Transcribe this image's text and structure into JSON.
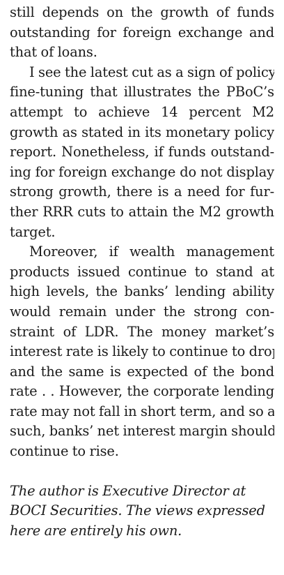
{
  "article": {
    "paragraphs": [
      {
        "lines": [
          "still depends on the growth of funds",
          "outstanding for foreign exchange and",
          "that of loans."
        ]
      },
      {
        "lines": [
          "I see the latest cut as a sign of policy",
          "fine-tuning that illustrates the PBoC’s",
          "attempt to achieve 14 percent M2",
          "growth as stated in its monetary policy",
          "report. Nonetheless, if funds outstand-",
          "ing for foreign exchange do not display",
          "strong growth, there is a need for fur-",
          "ther RRR cuts to attain the M2 growth",
          "target."
        ]
      },
      {
        "lines": [
          "Moreover, if wealth management",
          "products issued continue to stand at",
          "high levels, the banks’ lending ability",
          "would remain under the strong con-",
          "straint of LDR. The money market’s",
          "interest rate is likely to continue to drop,",
          "and the same is expected of the bond",
          "rate . . However, the corporate lending",
          "rate may not fall in short term, and so as",
          "such, banks’ net interest margin should",
          "continue to rise."
        ]
      }
    ],
    "author_note": {
      "lines": [
        "The author is Executive Director at",
        "BOCI Securities. The views expressed",
        "here are entirely his own."
      ]
    }
  }
}
